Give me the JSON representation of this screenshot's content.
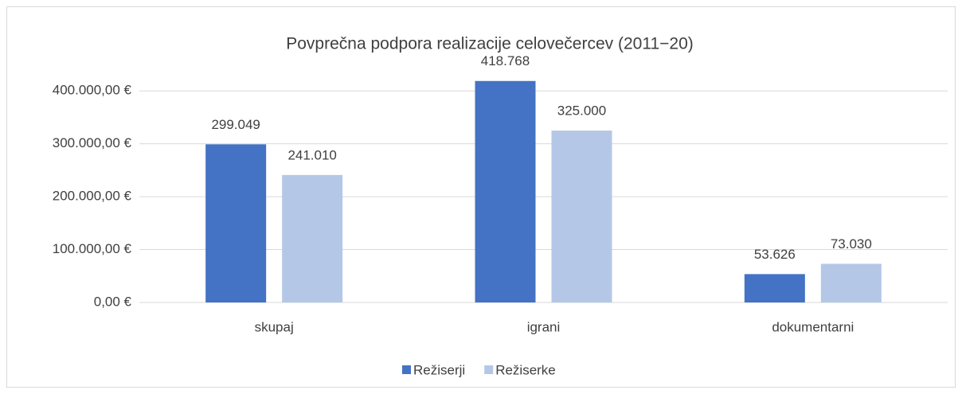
{
  "chart_data": {
    "type": "bar",
    "title": "Povprečna podpora realizacije celovečercev (2011−20)",
    "categories": [
      "skupaj",
      "igrani",
      "dokumentarni"
    ],
    "series": [
      {
        "name": "Režiserji",
        "color": "#4472c4",
        "values": [
          299049,
          418768,
          53626
        ],
        "value_labels": [
          "299.049",
          "418.768",
          "53.626"
        ]
      },
      {
        "name": "Režiserke",
        "color": "#b4c7e7",
        "values": [
          241010,
          325000,
          73030
        ],
        "value_labels": [
          "241.010",
          "325.000",
          "73.030"
        ]
      }
    ],
    "ylim": [
      0,
      450000
    ],
    "yticks": [
      {
        "value": 0,
        "label": "0,00 €"
      },
      {
        "value": 100000,
        "label": "100.000,00 €"
      },
      {
        "value": 200000,
        "label": "200.000,00 €"
      },
      {
        "value": 300000,
        "label": "300.000,00 €"
      },
      {
        "value": 400000,
        "label": "400.000,00 €"
      }
    ],
    "grid": true,
    "legend": "bottom"
  }
}
